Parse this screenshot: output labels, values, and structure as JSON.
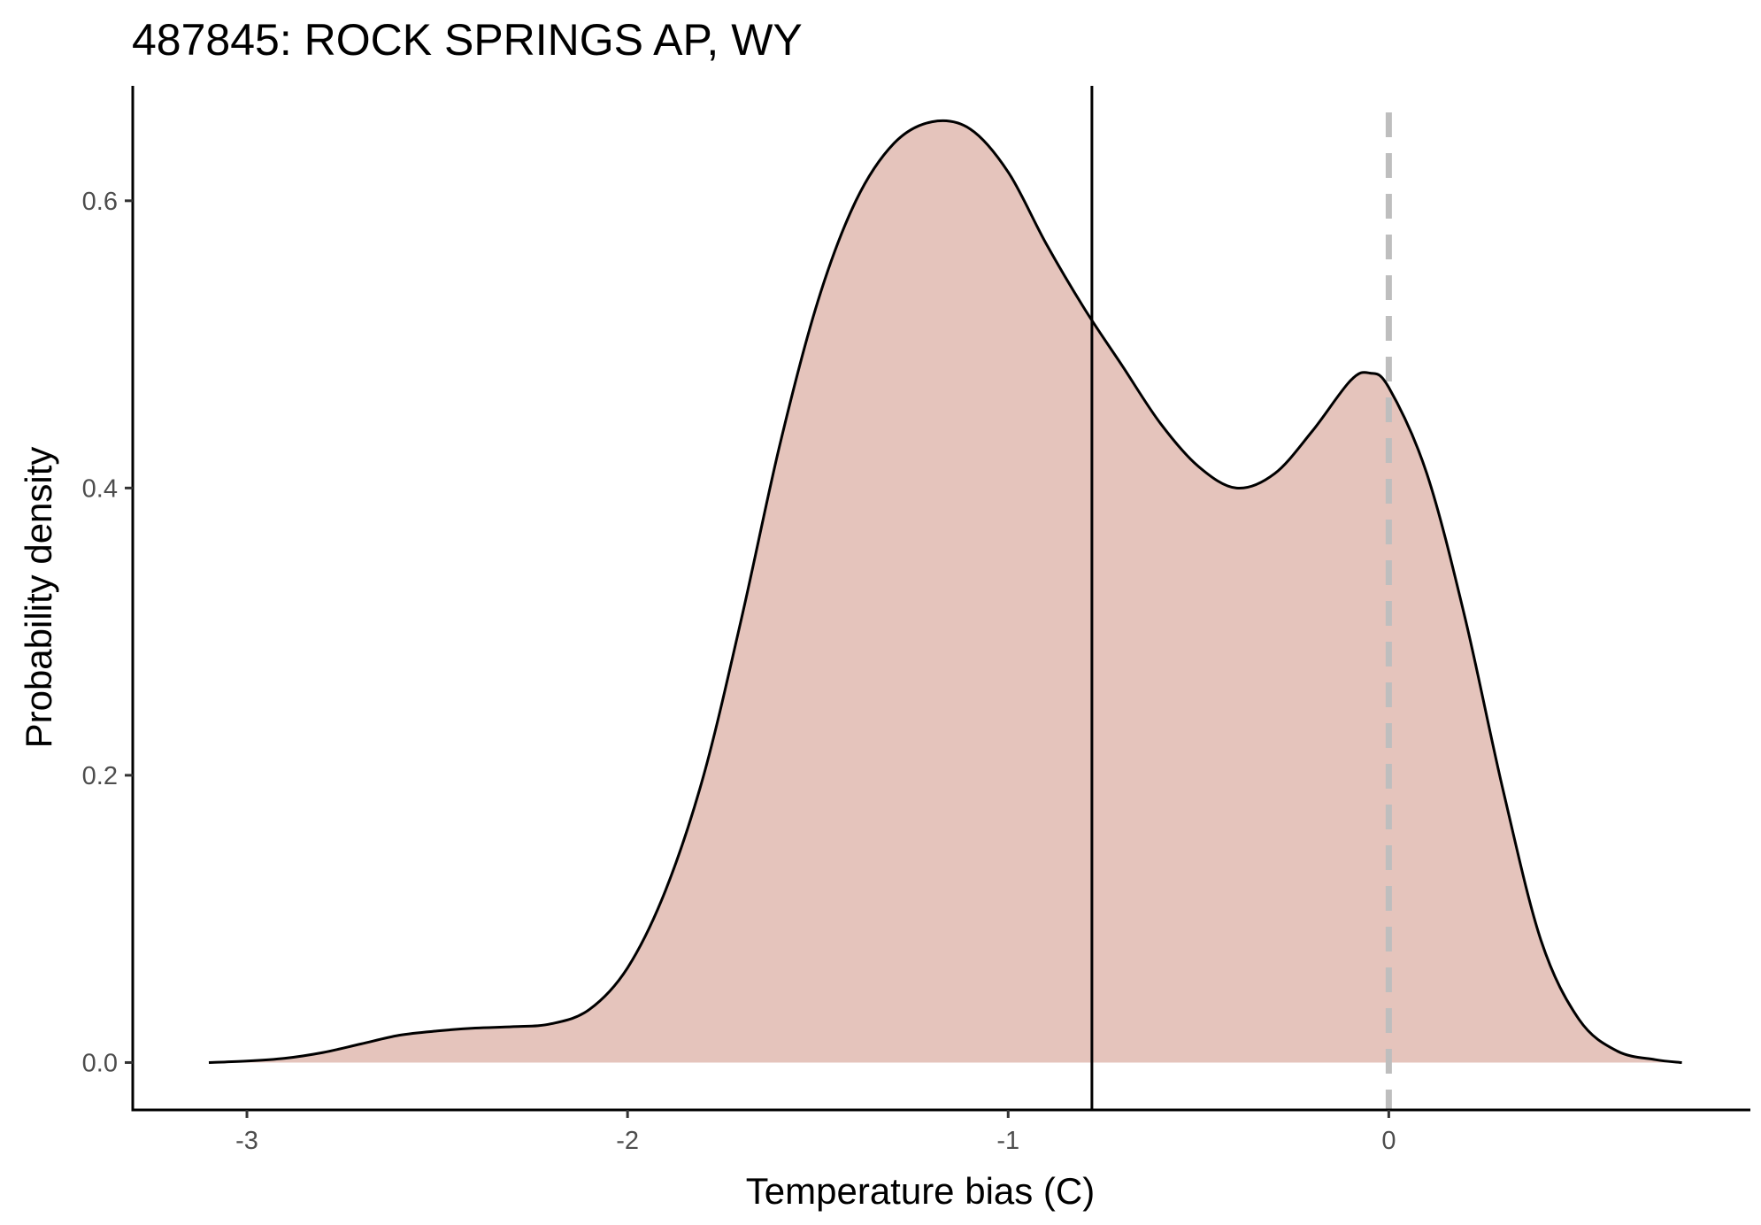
{
  "chart_data": {
    "type": "area",
    "title": "487845: ROCK SPRINGS AP, WY",
    "xlabel": "Temperature bias (C)",
    "ylabel": "Probability density",
    "xlim": [
      -3.3,
      0.95
    ],
    "ylim": [
      -0.033,
      0.68
    ],
    "x_ticks": [
      -3,
      -2,
      -1,
      0
    ],
    "x_tick_labels": [
      "-3",
      "-2",
      "-1",
      "0"
    ],
    "y_ticks": [
      0.0,
      0.2,
      0.4,
      0.6
    ],
    "y_tick_labels": [
      "0.0",
      "0.2",
      "0.4",
      "0.6"
    ],
    "grid": false,
    "legend": "none",
    "fill_color": "#e5c4bc",
    "line_color": "#000000",
    "mean_line_x": -0.78,
    "zero_line_x": 0,
    "zero_line_color": "#bebebe",
    "x": [
      -3.1,
      -3.0,
      -2.9,
      -2.8,
      -2.7,
      -2.6,
      -2.5,
      -2.4,
      -2.3,
      -2.2,
      -2.1,
      -2.0,
      -1.9,
      -1.8,
      -1.7,
      -1.6,
      -1.5,
      -1.4,
      -1.3,
      -1.2,
      -1.1,
      -1.0,
      -0.9,
      -0.8,
      -0.7,
      -0.6,
      -0.5,
      -0.4,
      -0.3,
      -0.2,
      -0.1,
      -0.05,
      0.0,
      0.1,
      0.2,
      0.3,
      0.4,
      0.5,
      0.6,
      0.7,
      0.77
    ],
    "y": [
      0.0,
      0.001,
      0.003,
      0.007,
      0.013,
      0.019,
      0.022,
      0.024,
      0.025,
      0.027,
      0.037,
      0.066,
      0.12,
      0.2,
      0.31,
      0.43,
      0.53,
      0.6,
      0.64,
      0.655,
      0.65,
      0.62,
      0.57,
      0.525,
      0.485,
      0.445,
      0.415,
      0.4,
      0.41,
      0.44,
      0.475,
      0.48,
      0.47,
      0.41,
      0.31,
      0.19,
      0.085,
      0.03,
      0.008,
      0.002,
      0.0
    ]
  }
}
